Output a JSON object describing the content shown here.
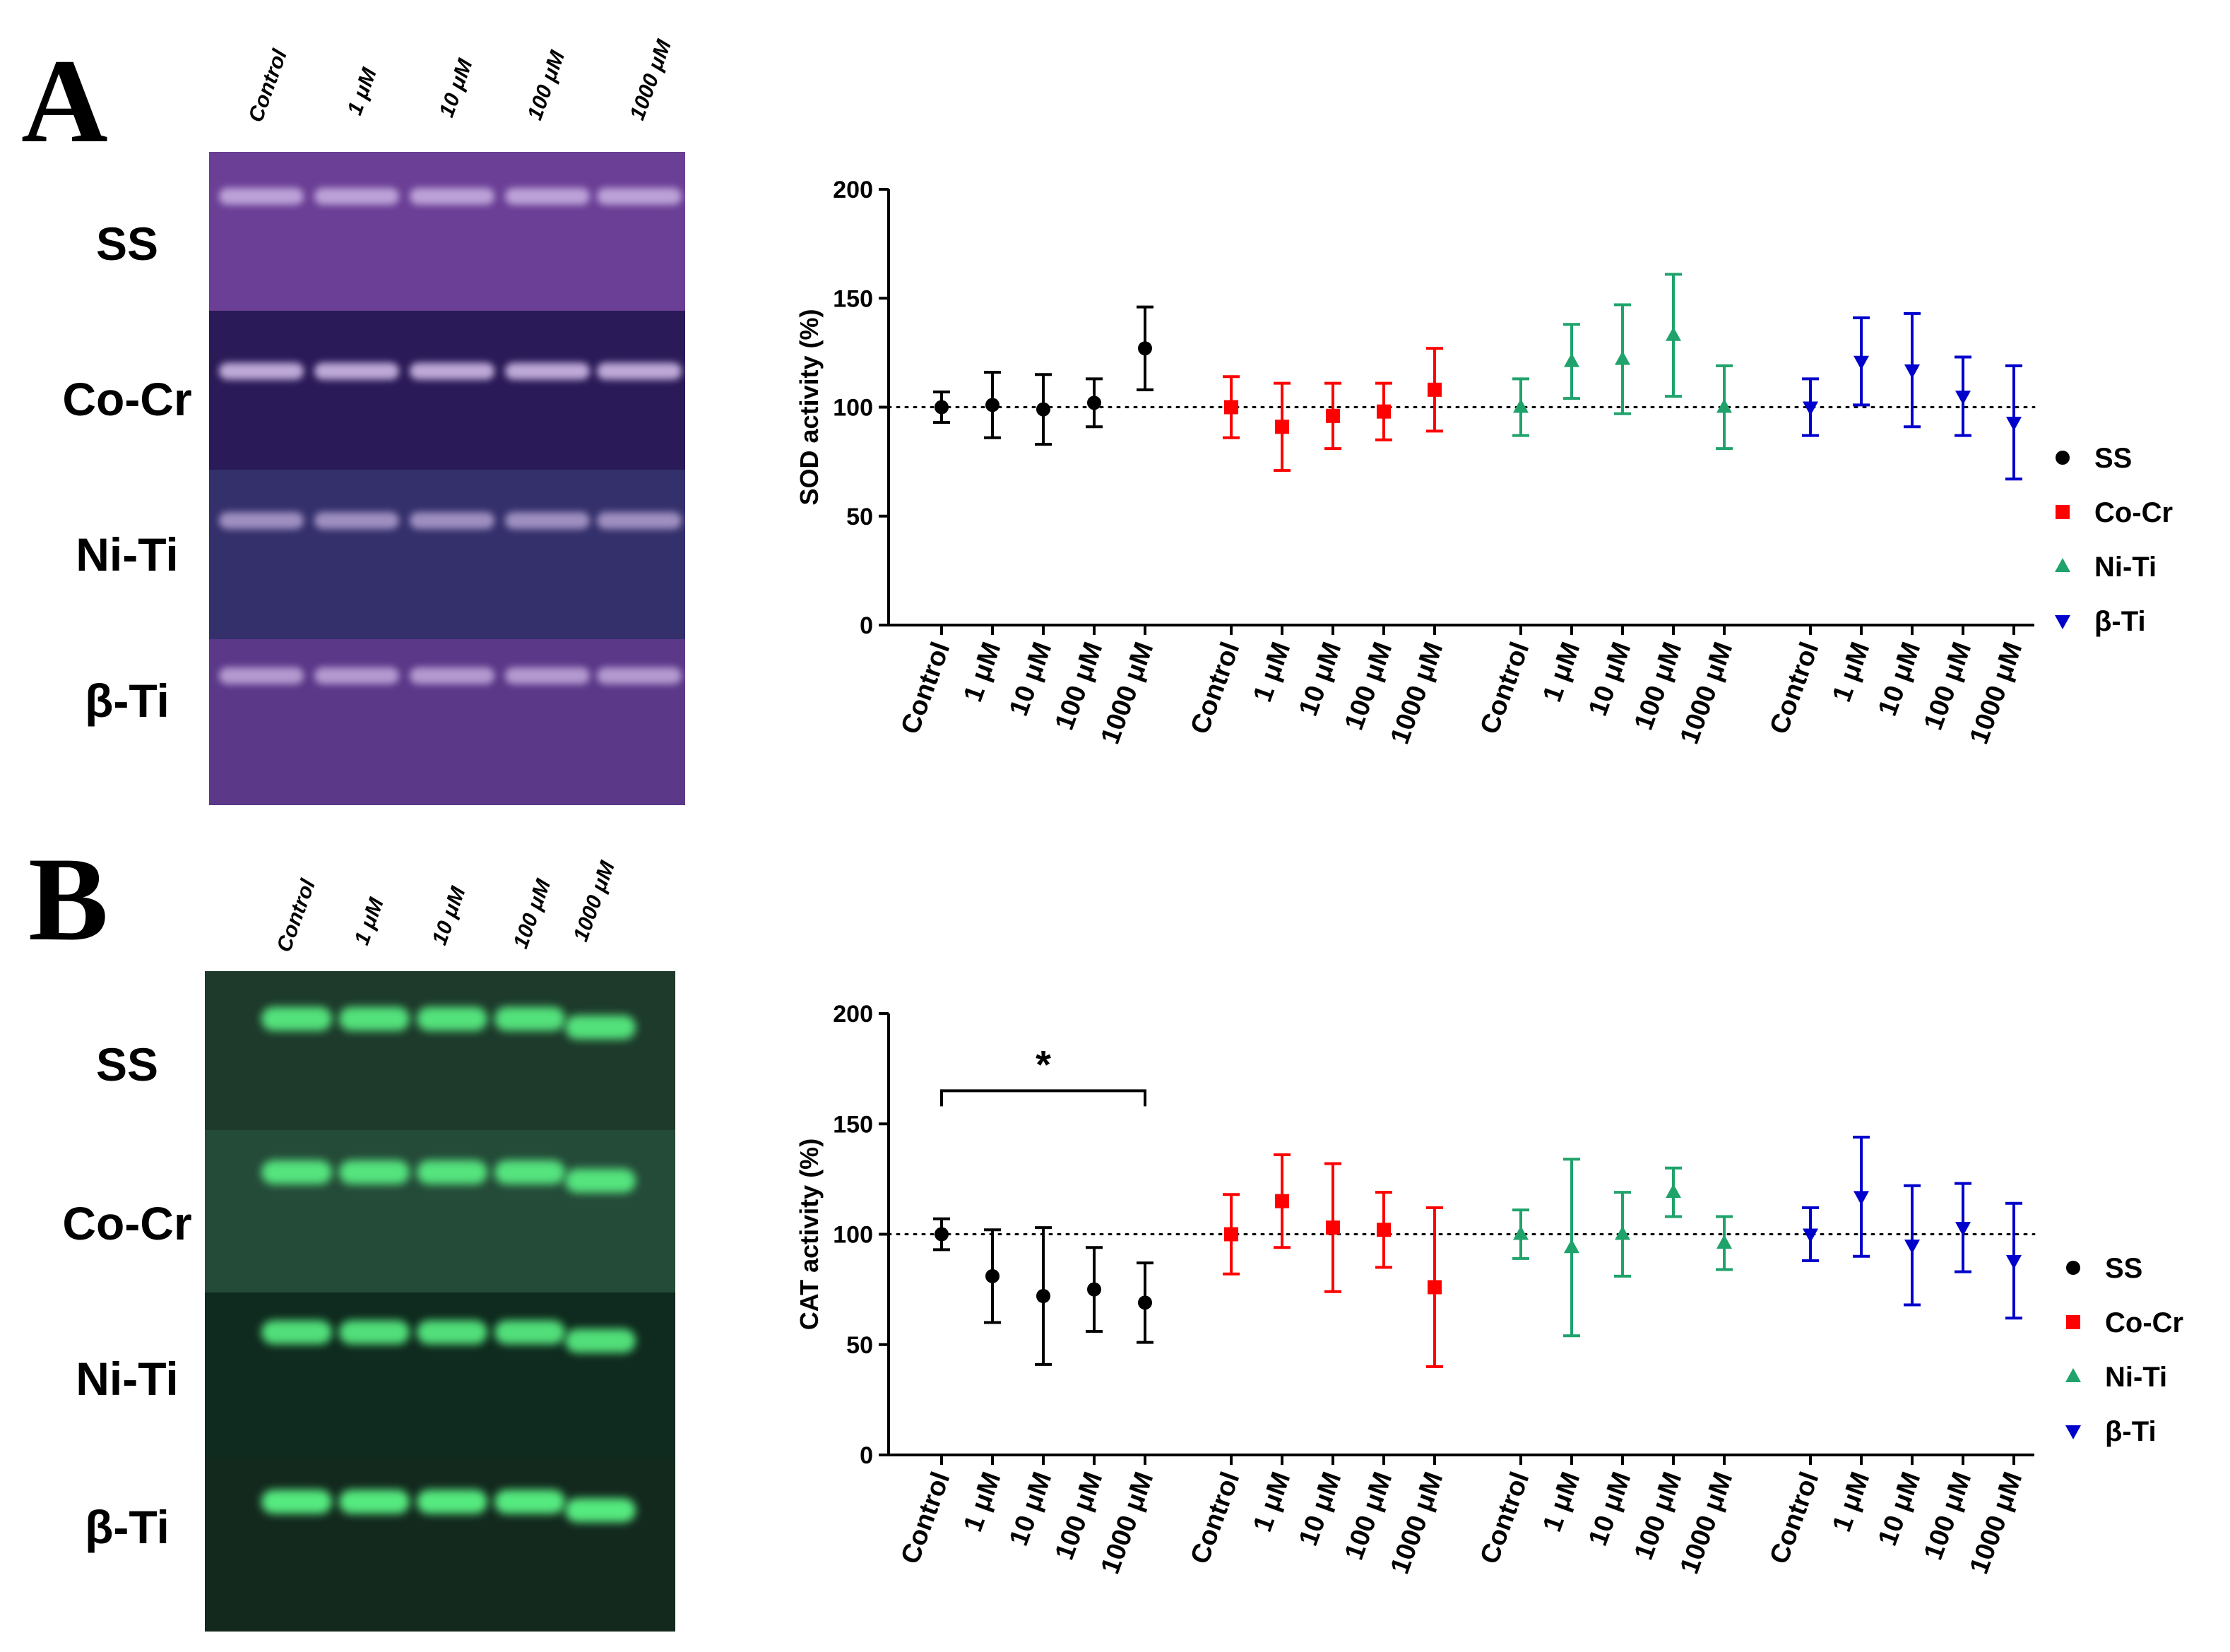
{
  "panels": [
    {
      "letter": "A",
      "gel": {
        "lane_labels": [
          "Control",
          "1 μM",
          "10 μM",
          "100 μM",
          "1000 μM"
        ],
        "row_labels": [
          "SS",
          "Co-Cr",
          "Ni-Ti",
          "β-Ti"
        ],
        "row_colors": [
          "#6a3f95",
          "#2a1a57",
          "#34306b",
          "#5b3888"
        ],
        "band_color": "#d8c2ee"
      }
    },
    {
      "letter": "B",
      "gel": {
        "lane_labels": [
          "Control",
          "1 μM",
          "10 μM",
          "100 μM",
          "1000 μM"
        ],
        "row_labels": [
          "SS",
          "Co-Cr",
          "Ni-Ti",
          "β-Ti"
        ],
        "row_colors": [
          "#1d3a2b",
          "#244a38",
          "#0f2a1e",
          "#13291e"
        ],
        "band_color": "#5dff8a"
      }
    }
  ],
  "chart_data": [
    {
      "type": "scatter",
      "ylabel": "SOD activity (%)",
      "xlabel": "",
      "ylim": [
        0,
        200
      ],
      "yticks": [
        0,
        50,
        100,
        150,
        200
      ],
      "reference_line": 100,
      "categories": [
        "Control",
        "1 μM",
        "10 μM",
        "100 μM",
        "1000 μM"
      ],
      "legend_position": "right",
      "series": [
        {
          "name": "SS",
          "color": "#000000",
          "marker": "circle",
          "values": [
            100,
            101,
            99,
            102,
            127
          ],
          "errors": [
            7,
            15,
            16,
            11,
            19
          ]
        },
        {
          "name": "Co-Cr",
          "color": "#ff0000",
          "marker": "square",
          "values": [
            100,
            91,
            96,
            98,
            108
          ],
          "errors": [
            14,
            20,
            15,
            13,
            19
          ]
        },
        {
          "name": "Ni-Ti",
          "color": "#1fa36b",
          "marker": "triangle-up",
          "values": [
            100,
            121,
            122,
            133,
            100
          ],
          "errors": [
            13,
            17,
            25,
            28,
            19
          ]
        },
        {
          "name": "β-Ti",
          "color": "#0000cc",
          "marker": "triangle-down",
          "values": [
            100,
            121,
            117,
            105,
            93
          ],
          "errors": [
            13,
            20,
            26,
            18,
            26
          ]
        }
      ]
    },
    {
      "type": "scatter",
      "ylabel": "CAT activity (%)",
      "xlabel": "",
      "ylim": [
        0,
        200
      ],
      "yticks": [
        0,
        50,
        100,
        150,
        200
      ],
      "reference_line": 100,
      "categories": [
        "Control",
        "1 μM",
        "10 μM",
        "100 μM",
        "1000 μM"
      ],
      "legend_position": "right",
      "annotations": [
        {
          "text": "*",
          "from": "SS Control",
          "to": "SS 1000 μM"
        }
      ],
      "series": [
        {
          "name": "SS",
          "color": "#000000",
          "marker": "circle",
          "values": [
            100,
            81,
            72,
            75,
            69
          ],
          "errors": [
            7,
            21,
            31,
            19,
            18
          ]
        },
        {
          "name": "Co-Cr",
          "color": "#ff0000",
          "marker": "square",
          "values": [
            100,
            115,
            103,
            102,
            76
          ],
          "errors": [
            18,
            21,
            29,
            17,
            36
          ]
        },
        {
          "name": "Ni-Ti",
          "color": "#1fa36b",
          "marker": "triangle-up",
          "values": [
            100,
            94,
            100,
            119,
            96
          ],
          "errors": [
            11,
            40,
            19,
            11,
            12
          ]
        },
        {
          "name": "β-Ti",
          "color": "#0000cc",
          "marker": "triangle-down",
          "values": [
            100,
            117,
            95,
            103,
            88
          ],
          "errors": [
            12,
            27,
            27,
            20,
            26
          ]
        }
      ]
    }
  ]
}
